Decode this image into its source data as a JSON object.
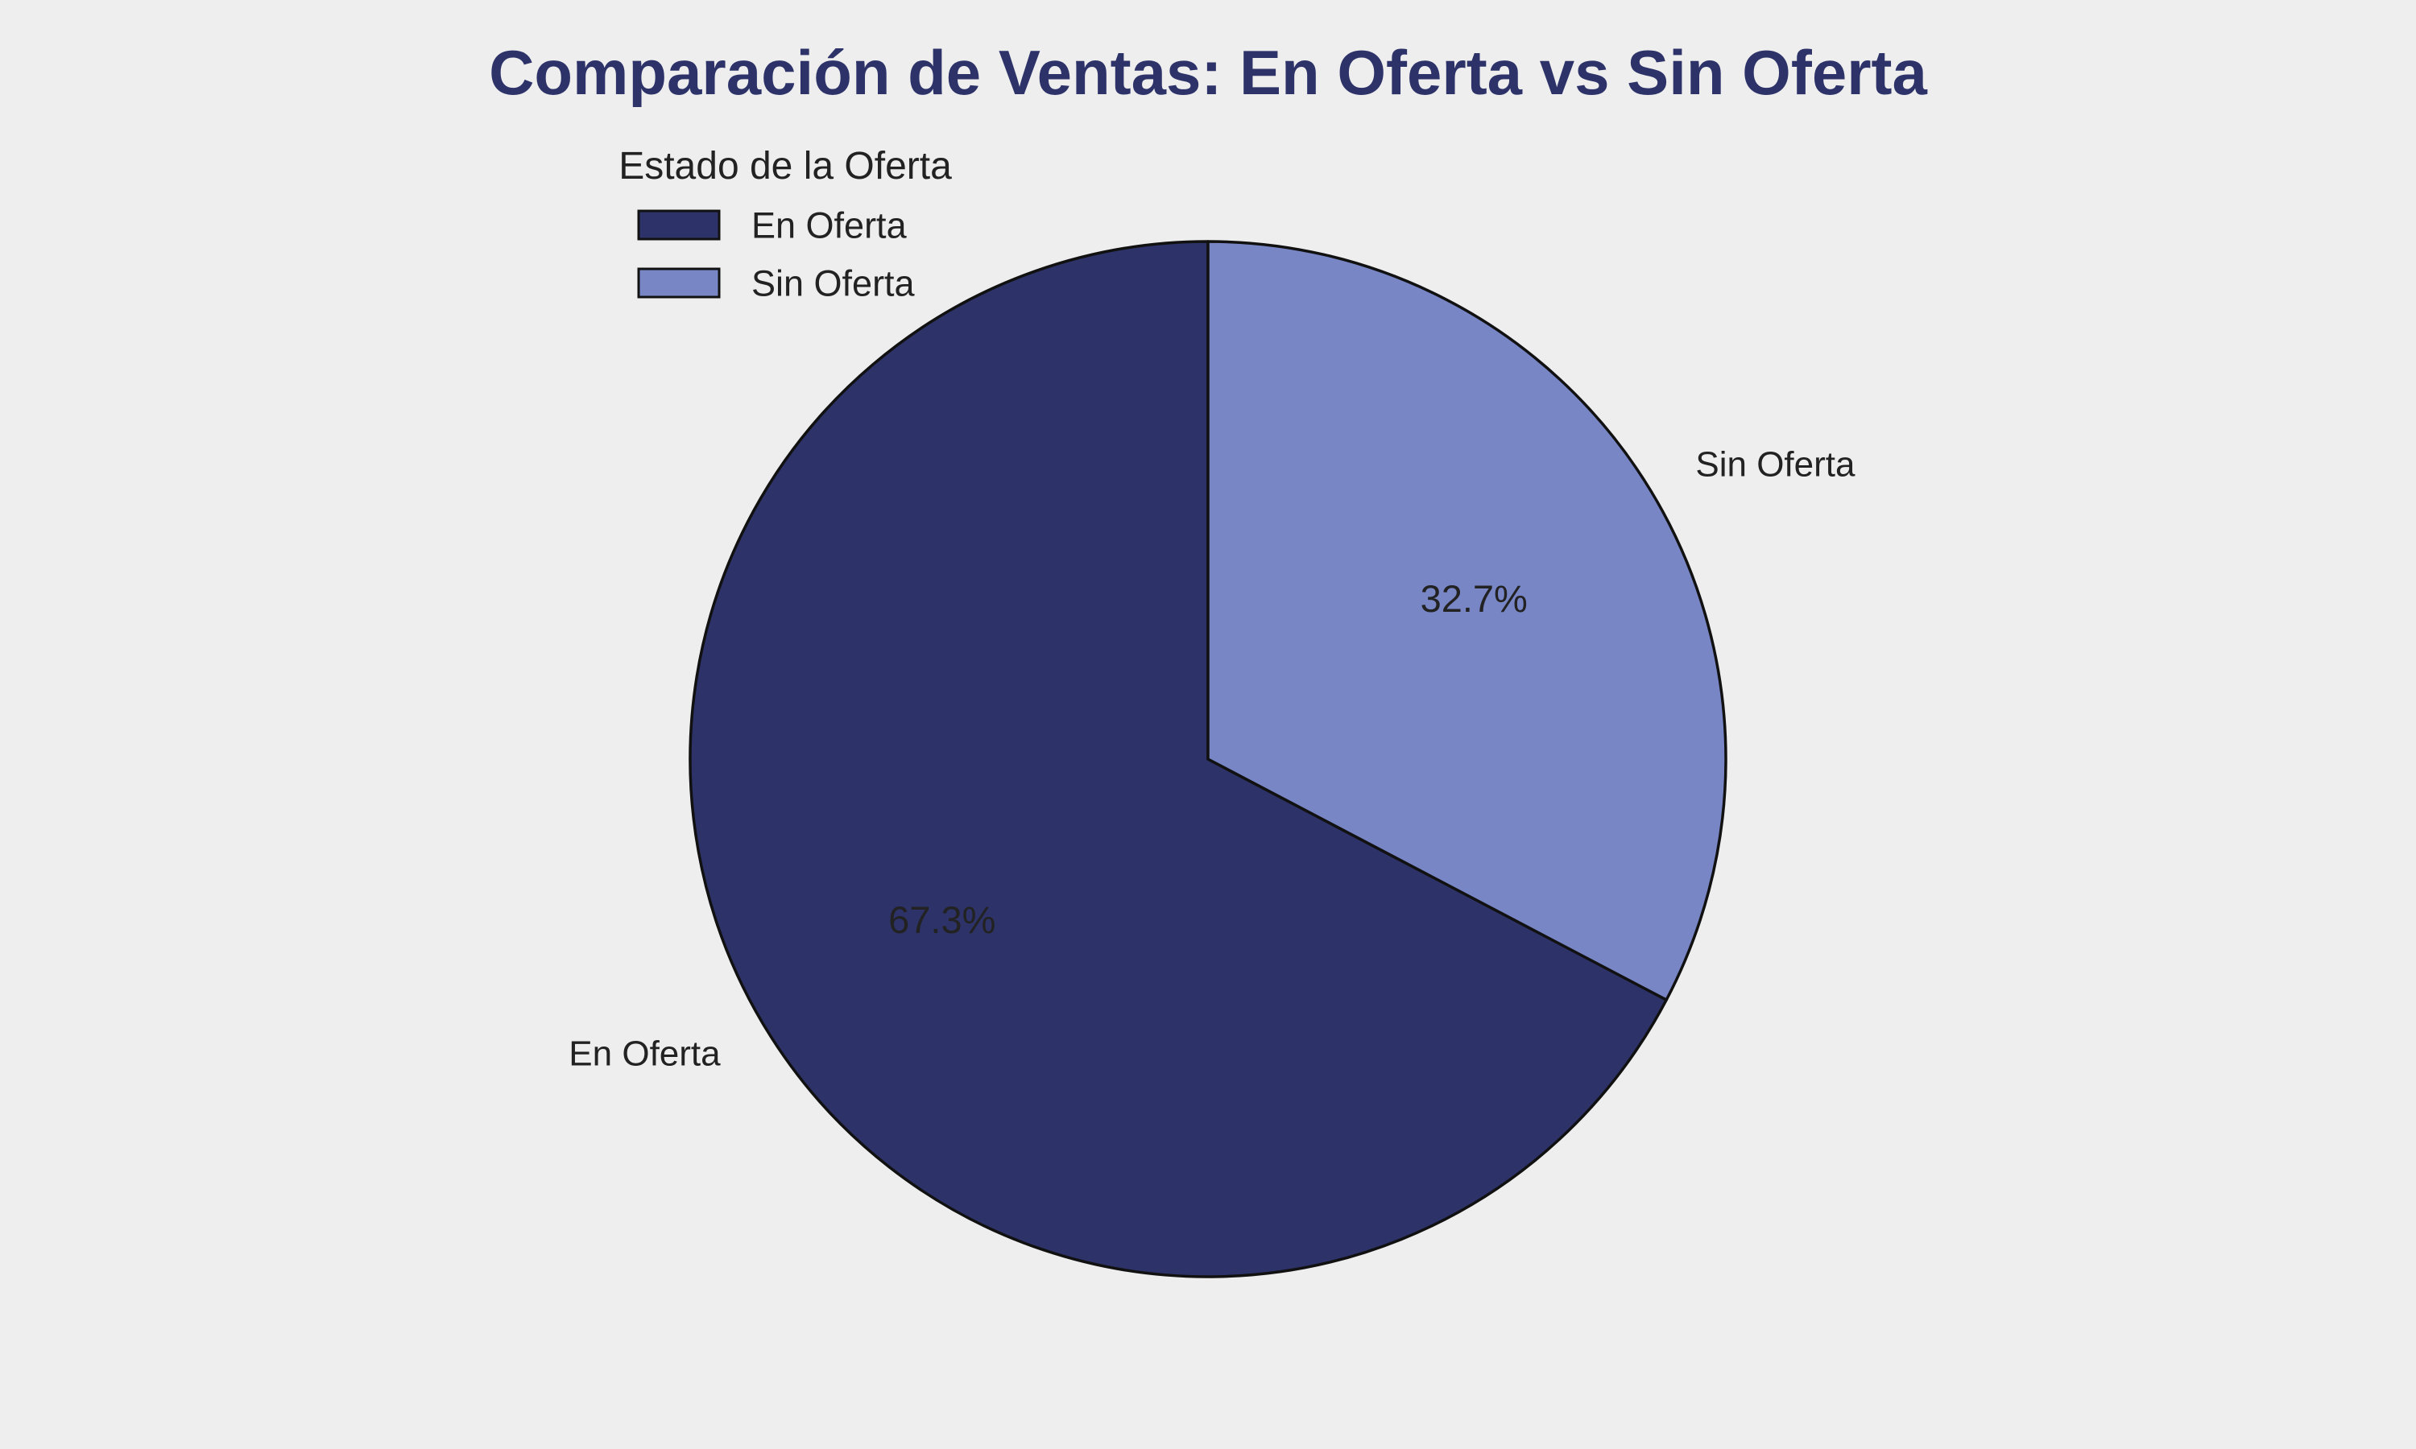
{
  "chart_data": {
    "type": "pie",
    "title": "Comparación de Ventas: En Oferta vs Sin Oferta",
    "legend_title": "Estado de la Oferta",
    "legend_position": "top-left",
    "start_angle": "top, counter-clockwise",
    "slices": [
      {
        "label": "En Oferta",
        "value": 67.3,
        "pct_label": "67.3%",
        "color": "#2d3369"
      },
      {
        "label": "Sin Oferta",
        "value": 32.7,
        "pct_label": "32.7%",
        "color": "#7886c6"
      }
    ]
  },
  "colors": {
    "title": "#2d3369",
    "background": "#eeeeee",
    "edge": "#111111"
  }
}
